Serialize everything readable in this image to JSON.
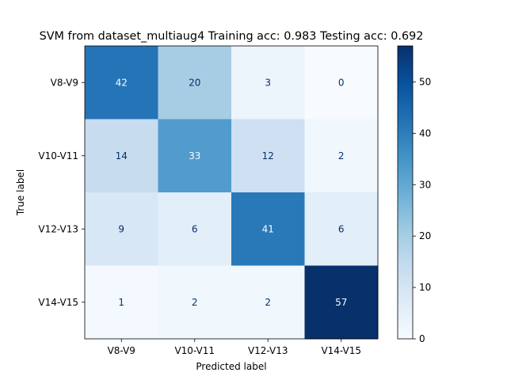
{
  "chart_data": {
    "type": "heatmap",
    "title": "SVM from dataset_multiaug4 Training acc: 0.983 Testing acc: 0.692",
    "xlabel": "Predicted label",
    "ylabel": "True label",
    "x_categories": [
      "V8-V9",
      "V10-V11",
      "V12-V13",
      "V14-V15"
    ],
    "y_categories": [
      "V8-V9",
      "V10-V11",
      "V12-V13",
      "V14-V15"
    ],
    "values": [
      [
        42,
        20,
        3,
        0
      ],
      [
        14,
        33,
        12,
        2
      ],
      [
        9,
        6,
        41,
        6
      ],
      [
        1,
        2,
        2,
        57
      ]
    ],
    "colormap": "Blues",
    "colorbar": {
      "vmin": 0,
      "vmax": 57,
      "ticks": [
        0,
        10,
        20,
        30,
        40,
        50
      ]
    }
  }
}
